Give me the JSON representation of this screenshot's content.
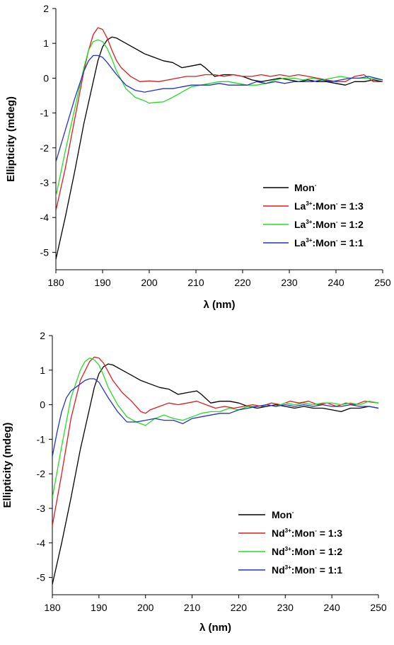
{
  "chart_data": [
    {
      "type": "line",
      "xlabel": "λ (nm)",
      "ylabel": "Ellipticity (mdeg)",
      "xlim": [
        180,
        250
      ],
      "ylim": [
        -5.5,
        2
      ],
      "xticks": [
        180,
        190,
        200,
        210,
        220,
        230,
        240,
        250
      ],
      "yticks": [
        2,
        1,
        0,
        -1,
        -2,
        -3,
        -4,
        -5
      ],
      "grid": false,
      "legend_position": "bottom-right",
      "series": [
        {
          "name": "Mon⁻",
          "legend_parts": [
            [
              "Mon",
              ""
            ],
            [
              "",
              "-"
            ]
          ],
          "color": "#000000",
          "x": [
            180,
            182,
            184,
            186,
            188,
            189,
            190,
            191,
            192,
            193,
            195,
            197,
            199,
            201,
            203,
            205,
            207,
            209,
            211,
            212,
            214,
            216,
            218,
            220,
            222,
            224,
            226,
            228,
            230,
            232,
            234,
            236,
            238,
            240,
            242,
            244,
            246,
            248,
            250
          ],
          "y": [
            -5.2,
            -4.0,
            -2.7,
            -1.3,
            -0.1,
            0.5,
            0.9,
            1.1,
            1.18,
            1.15,
            1.0,
            0.85,
            0.7,
            0.6,
            0.5,
            0.45,
            0.3,
            0.35,
            0.4,
            0.3,
            0.05,
            0.1,
            0.1,
            0.05,
            -0.05,
            -0.1,
            -0.05,
            0.0,
            -0.05,
            -0.1,
            -0.05,
            -0.1,
            -0.1,
            -0.15,
            -0.2,
            -0.1,
            -0.1,
            -0.05,
            -0.1
          ]
        },
        {
          "name": "La³⁺:Mon⁻ = 1:3",
          "legend_parts": [
            [
              "La",
              ""
            ],
            [
              "",
              "3+"
            ],
            [
              ":Mon",
              ""
            ],
            [
              "",
              "-"
            ],
            [
              " = 1:3",
              ""
            ]
          ],
          "color": "#dd1c1c",
          "x": [
            180,
            182,
            184,
            186,
            187,
            188,
            189,
            190,
            191,
            192,
            193,
            194,
            196,
            198,
            200,
            202,
            204,
            206,
            208,
            210,
            212,
            214,
            216,
            218,
            220,
            222,
            224,
            226,
            228,
            230,
            232,
            234,
            236,
            238,
            240,
            242,
            244,
            246,
            248,
            250
          ],
          "y": [
            -3.8,
            -2.6,
            -1.2,
            0.2,
            0.8,
            1.25,
            1.45,
            1.4,
            1.15,
            0.8,
            0.5,
            0.3,
            0.05,
            -0.1,
            -0.08,
            -0.1,
            -0.05,
            0.0,
            0.05,
            0.05,
            0.1,
            0.1,
            0.05,
            0.1,
            0.05,
            0.05,
            0.1,
            0.05,
            0.1,
            0.05,
            0.1,
            0.05,
            0.0,
            -0.05,
            -0.1,
            -0.1,
            0.05,
            0.1,
            -0.1,
            -0.1
          ]
        },
        {
          "name": "La³⁺:Mon⁻ = 1:2",
          "legend_parts": [
            [
              "La",
              ""
            ],
            [
              "",
              "3+"
            ],
            [
              ":Mon",
              ""
            ],
            [
              "",
              "-"
            ],
            [
              " = 1:2",
              ""
            ]
          ],
          "color": "#22dd22",
          "x": [
            180,
            182,
            184,
            186,
            187,
            188,
            189,
            190,
            191,
            192,
            193,
            195,
            197,
            199,
            200,
            201,
            203,
            205,
            207,
            209,
            211,
            213,
            215,
            217,
            219,
            221,
            223,
            225,
            227,
            229,
            231,
            233,
            235,
            237,
            239,
            241,
            243,
            245,
            247,
            250
          ],
          "y": [
            -3.4,
            -2.1,
            -0.9,
            0.3,
            0.8,
            1.05,
            1.1,
            1.05,
            0.85,
            0.55,
            0.2,
            -0.3,
            -0.55,
            -0.65,
            -0.72,
            -0.7,
            -0.68,
            -0.55,
            -0.4,
            -0.25,
            -0.2,
            -0.15,
            -0.1,
            -0.1,
            -0.15,
            -0.2,
            -0.2,
            -0.15,
            -0.05,
            0.0,
            0.0,
            -0.05,
            0.0,
            -0.05,
            0.0,
            0.05,
            0.0,
            0.0,
            0.0,
            -0.05
          ]
        },
        {
          "name": "La³⁺:Mon⁻ = 1:1",
          "legend_parts": [
            [
              "La",
              ""
            ],
            [
              "",
              "3+"
            ],
            [
              ":Mon",
              ""
            ],
            [
              "",
              "-"
            ],
            [
              " = 1:1",
              ""
            ]
          ],
          "color": "#2233cc",
          "x": [
            180,
            182,
            184,
            186,
            187,
            188,
            189,
            190,
            191,
            193,
            195,
            197,
            199,
            201,
            203,
            205,
            207,
            209,
            211,
            213,
            215,
            217,
            219,
            221,
            223,
            225,
            227,
            229,
            231,
            233,
            235,
            237,
            239,
            241,
            243,
            245,
            247,
            250
          ],
          "y": [
            -2.4,
            -1.5,
            -0.6,
            0.2,
            0.5,
            0.65,
            0.65,
            0.6,
            0.45,
            0.1,
            -0.2,
            -0.35,
            -0.4,
            -0.35,
            -0.3,
            -0.3,
            -0.25,
            -0.2,
            -0.2,
            -0.2,
            -0.15,
            -0.2,
            -0.2,
            -0.2,
            -0.1,
            -0.15,
            -0.1,
            -0.15,
            -0.1,
            -0.1,
            -0.1,
            -0.05,
            -0.1,
            -0.05,
            0.0,
            0.0,
            0.05,
            -0.05
          ]
        }
      ]
    },
    {
      "type": "line",
      "xlabel": "λ (nm)",
      "ylabel": "Ellipticity (mdeg)",
      "xlim": [
        180,
        250
      ],
      "ylim": [
        -5.5,
        2
      ],
      "xticks": [
        180,
        190,
        200,
        210,
        220,
        230,
        240,
        250
      ],
      "yticks": [
        2,
        1,
        0,
        -1,
        -2,
        -3,
        -4,
        -5
      ],
      "grid": false,
      "legend_position": "bottom-right",
      "series": [
        {
          "name": "Mon⁻",
          "legend_parts": [
            [
              "Mon",
              ""
            ],
            [
              "",
              "-"
            ]
          ],
          "color": "#000000",
          "x": [
            180,
            182,
            184,
            186,
            188,
            189,
            190,
            191,
            192,
            193,
            195,
            197,
            199,
            201,
            203,
            205,
            207,
            209,
            211,
            212,
            214,
            216,
            218,
            220,
            222,
            224,
            226,
            228,
            230,
            232,
            234,
            236,
            238,
            240,
            242,
            244,
            246,
            248,
            250
          ],
          "y": [
            -5.2,
            -4.0,
            -2.7,
            -1.3,
            -0.1,
            0.5,
            0.9,
            1.1,
            1.18,
            1.15,
            1.0,
            0.85,
            0.7,
            0.6,
            0.5,
            0.45,
            0.3,
            0.35,
            0.4,
            0.3,
            0.05,
            0.1,
            0.1,
            0.05,
            -0.05,
            -0.1,
            -0.05,
            0.0,
            -0.05,
            -0.1,
            -0.05,
            -0.1,
            -0.1,
            -0.15,
            -0.2,
            -0.1,
            -0.1,
            -0.05,
            -0.1
          ]
        },
        {
          "name": "Nd³⁺:Mon⁻ = 1:3",
          "legend_parts": [
            [
              "Nd",
              ""
            ],
            [
              "",
              "3+"
            ],
            [
              ":Mon",
              ""
            ],
            [
              "",
              "-"
            ],
            [
              " = 1:3",
              ""
            ]
          ],
          "color": "#dd1c1c",
          "x": [
            180,
            182,
            184,
            186,
            188,
            189,
            190,
            191,
            192,
            193,
            195,
            197,
            199,
            200,
            201,
            203,
            205,
            207,
            209,
            211,
            213,
            215,
            217,
            219,
            221,
            223,
            225,
            227,
            229,
            231,
            233,
            235,
            237,
            239,
            241,
            243,
            245,
            247,
            250
          ],
          "y": [
            -3.5,
            -2.0,
            -0.4,
            0.7,
            1.25,
            1.38,
            1.35,
            1.2,
            0.95,
            0.7,
            0.35,
            0.1,
            -0.2,
            -0.25,
            -0.15,
            -0.05,
            0.05,
            0.0,
            0.05,
            0.1,
            0.0,
            -0.1,
            -0.05,
            -0.1,
            -0.05,
            0.0,
            -0.05,
            0.05,
            0.0,
            0.1,
            0.05,
            0.1,
            0.0,
            0.05,
            -0.05,
            0.05,
            0.0,
            0.1,
            0.05
          ]
        },
        {
          "name": "Nd³⁺:Mon⁻ = 1:2",
          "legend_parts": [
            [
              "Nd",
              ""
            ],
            [
              "",
              "3+"
            ],
            [
              ":Mon",
              ""
            ],
            [
              "",
              "-"
            ],
            [
              " = 1:2",
              ""
            ]
          ],
          "color": "#22dd22",
          "x": [
            180,
            182,
            184,
            186,
            187,
            188,
            189,
            190,
            191,
            192,
            194,
            196,
            198,
            200,
            202,
            204,
            206,
            208,
            210,
            212,
            214,
            216,
            218,
            220,
            222,
            224,
            226,
            228,
            230,
            232,
            234,
            236,
            238,
            240,
            242,
            244,
            246,
            248,
            250
          ],
          "y": [
            -2.7,
            -1.2,
            0.2,
            1.0,
            1.25,
            1.35,
            1.3,
            1.15,
            0.85,
            0.5,
            0.0,
            -0.35,
            -0.5,
            -0.6,
            -0.4,
            -0.3,
            -0.4,
            -0.45,
            -0.35,
            -0.25,
            -0.2,
            -0.2,
            -0.1,
            -0.15,
            -0.05,
            -0.05,
            0.0,
            -0.05,
            0.05,
            0.0,
            0.05,
            0.0,
            0.05,
            0.05,
            0.0,
            0.05,
            0.0,
            0.1,
            0.05
          ]
        },
        {
          "name": "Nd³⁺:Mon⁻ = 1:1",
          "legend_parts": [
            [
              "Nd",
              ""
            ],
            [
              "",
              "3+"
            ],
            [
              ":Mon",
              ""
            ],
            [
              "",
              "-"
            ],
            [
              " = 1:1",
              ""
            ]
          ],
          "color": "#2233cc",
          "x": [
            180,
            181,
            182,
            183,
            184,
            186,
            187,
            188,
            189,
            190,
            192,
            194,
            196,
            198,
            200,
            202,
            204,
            206,
            208,
            210,
            212,
            214,
            216,
            218,
            220,
            222,
            224,
            226,
            228,
            230,
            232,
            234,
            236,
            238,
            240,
            242,
            244,
            246,
            248,
            250
          ],
          "y": [
            -1.5,
            -0.8,
            -0.2,
            0.2,
            0.4,
            0.6,
            0.7,
            0.75,
            0.75,
            0.65,
            0.2,
            -0.2,
            -0.5,
            -0.5,
            -0.45,
            -0.4,
            -0.45,
            -0.45,
            -0.55,
            -0.4,
            -0.35,
            -0.3,
            -0.25,
            -0.25,
            -0.15,
            -0.1,
            -0.05,
            0.0,
            -0.05,
            0.0,
            -0.05,
            0.0,
            -0.05,
            0.0,
            -0.05,
            -0.05,
            0.0,
            -0.05,
            -0.05,
            -0.1
          ]
        }
      ]
    }
  ]
}
